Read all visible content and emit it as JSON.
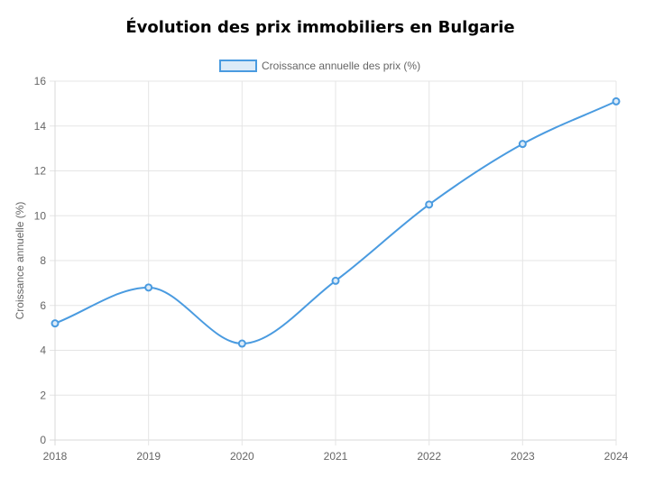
{
  "chart_data": {
    "type": "line",
    "title": "Évolution des prix immobiliers en Bulgarie",
    "xlabel": "",
    "ylabel": "Croissance annuelle (%)",
    "categories": [
      "2018",
      "2019",
      "2020",
      "2021",
      "2022",
      "2023",
      "2024"
    ],
    "series": [
      {
        "name": "Croissance annuelle des prix (%)",
        "values": [
          5.2,
          6.8,
          4.3,
          7.1,
          10.5,
          13.2,
          15.1
        ],
        "color": "#4a9be0",
        "fill": "#dcebf8"
      }
    ],
    "ylim": [
      0,
      16
    ],
    "yticks": [
      "0",
      "2",
      "4",
      "6",
      "8",
      "10",
      "12",
      "14",
      "16"
    ],
    "grid": true,
    "legend_position": "top-center"
  }
}
